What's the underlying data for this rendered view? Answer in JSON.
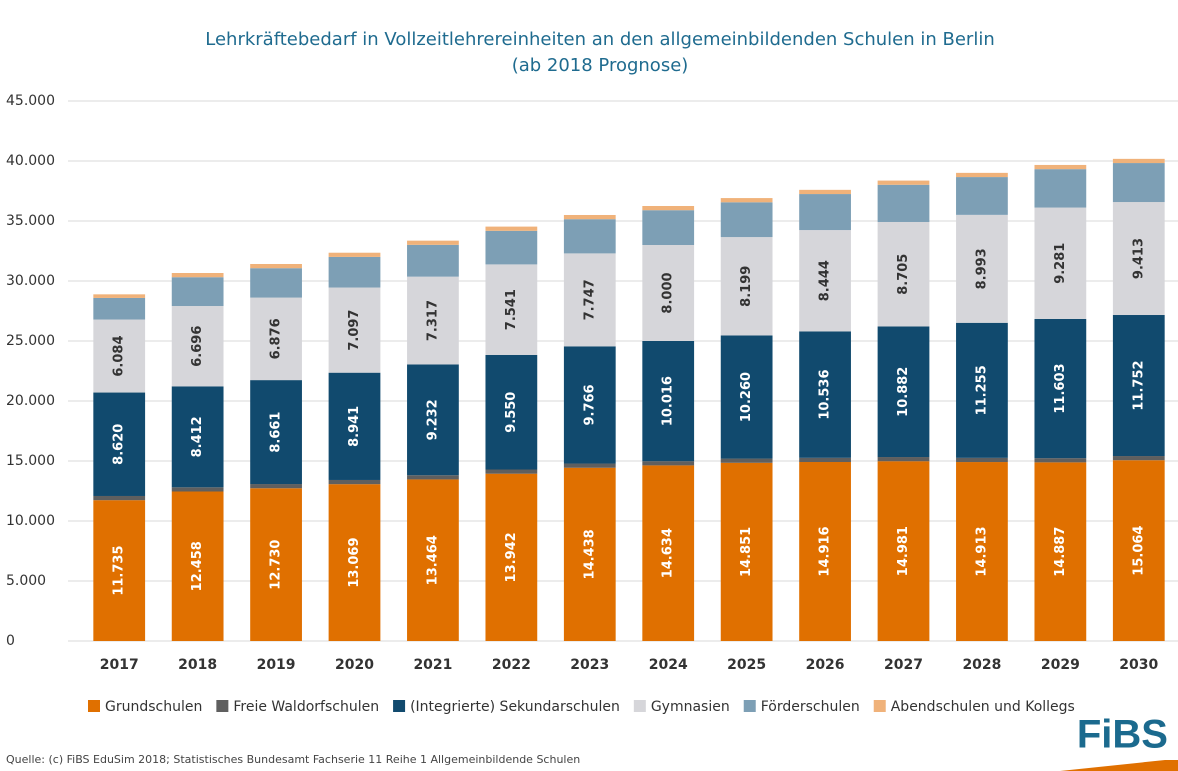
{
  "chart_data": {
    "type": "stacked_bar",
    "title": "Lehrkräftebedarf in Vollzeitlehrereinheiten an den allgemeinbildenden Schulen in Berlin",
    "subtitle": "(ab 2018 Prognose)",
    "source": "Quelle: (c) FiBS EduSim 2018; Statistisches Bundesamt Fachserie 11 Reihe 1 Allgemeinbildende Schulen",
    "logo": "FiBS",
    "categories": [
      "2017",
      "2018",
      "2019",
      "2020",
      "2021",
      "2022",
      "2023",
      "2024",
      "2025",
      "2026",
      "2027",
      "2028",
      "2029",
      "2030"
    ],
    "ylim": [
      0,
      45000
    ],
    "yticks": [
      {
        "value": 0,
        "label": "0"
      },
      {
        "value": 5000,
        "label": "5.000"
      },
      {
        "value": 10000,
        "label": "10.000"
      },
      {
        "value": 15000,
        "label": "15.000"
      },
      {
        "value": 20000,
        "label": "20.000"
      },
      {
        "value": 25000,
        "label": "25.000"
      },
      {
        "value": 30000,
        "label": "30.000"
      },
      {
        "value": 35000,
        "label": "35.000"
      },
      {
        "value": 40000,
        "label": "40.000"
      },
      {
        "value": 45000,
        "label": "45.000"
      }
    ],
    "grid": true,
    "legend": "bottom",
    "series": [
      {
        "name": "Grundschulen",
        "color": "#e07000",
        "values": [
          11735,
          12458,
          12730,
          13069,
          13464,
          13942,
          14438,
          14634,
          14851,
          14916,
          14981,
          14913,
          14887,
          15064
        ],
        "value_labels": [
          "11.735",
          "12.458",
          "12.730",
          "13.069",
          "13.464",
          "13.942",
          "14.438",
          "14.634",
          "14.851",
          "14.916",
          "14.981",
          "14.913",
          "14.887",
          "15.064"
        ]
      },
      {
        "name": "Freie Waldorfschulen",
        "color": "#5f5f5f",
        "values": [
          350,
          350,
          350,
          350,
          350,
          350,
          350,
          350,
          350,
          350,
          350,
          350,
          350,
          350
        ]
      },
      {
        "name": "(Integrierte) Sekundarschulen",
        "color": "#114a6e",
        "values": [
          8620,
          8412,
          8661,
          8941,
          9232,
          9550,
          9766,
          10016,
          10260,
          10536,
          10882,
          11255,
          11603,
          11752
        ],
        "value_labels": [
          "8.620",
          "8.412",
          "8.661",
          "8.941",
          "9.232",
          "9.550",
          "9.766",
          "10.016",
          "10.260",
          "10.536",
          "10.882",
          "11.255",
          "11.603",
          "11.752"
        ]
      },
      {
        "name": "Gymnasien",
        "color": "#d6d6da",
        "values": [
          6084,
          6696,
          6876,
          7097,
          7317,
          7541,
          7747,
          8000,
          8199,
          8444,
          8705,
          8993,
          9281,
          9413
        ],
        "value_labels": [
          "6.084",
          "6.696",
          "6.876",
          "7.097",
          "7.317",
          "7.541",
          "7.747",
          "8.000",
          "8.199",
          "8.444",
          "8.705",
          "8.993",
          "9.281",
          "9.413"
        ]
      },
      {
        "name": "Förderschulen",
        "color": "#7d9fb5",
        "values": [
          1800,
          2400,
          2450,
          2550,
          2650,
          2800,
          2850,
          2900,
          2900,
          3000,
          3100,
          3150,
          3200,
          3250
        ]
      },
      {
        "name": "Abendschulen und Kollegs",
        "color": "#f0b27a",
        "values": [
          300,
          350,
          350,
          350,
          350,
          350,
          350,
          350,
          350,
          350,
          350,
          350,
          350,
          350
        ]
      }
    ]
  }
}
